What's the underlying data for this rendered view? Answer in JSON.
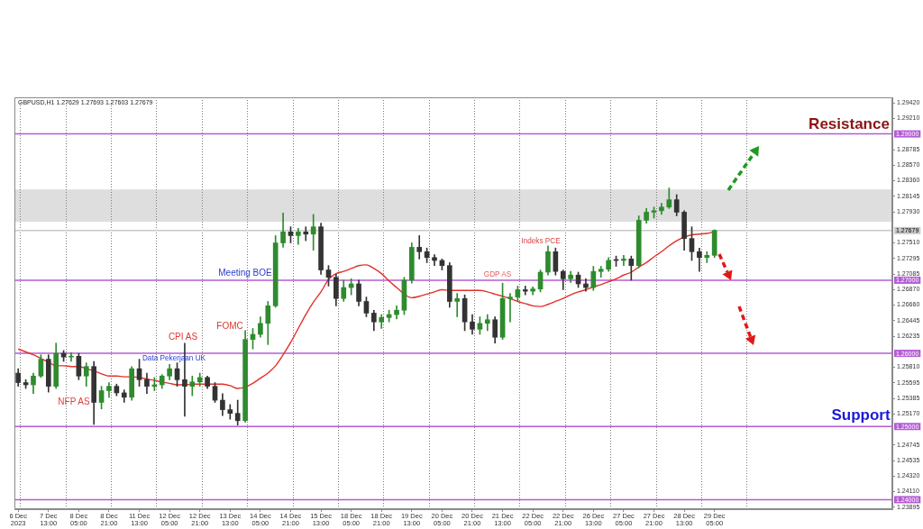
{
  "chart_data": {
    "type": "candlestick",
    "title": "GBPUSD,H1 1.27629 1.27693 1.27603 1.27679",
    "categories": [
      "6 Dec 2023",
      null,
      null,
      null,
      "7 Dec 13:00",
      null,
      null,
      null,
      "8 Dec 05:00",
      null,
      null,
      null,
      "8 Dec 21:00",
      null,
      null,
      null,
      "11 Dec 13:00",
      null,
      null,
      null,
      "12 Dec 05:00",
      null,
      null,
      null,
      "12 Dec 21:00",
      null,
      null,
      null,
      "13 Dec 13:00",
      null,
      null,
      null,
      "14 Dec 05:00",
      null,
      null,
      null,
      "14 Dec 21:00",
      null,
      null,
      null,
      "15 Dec 13:00",
      null,
      null,
      null,
      "18 Dec 05:00",
      null,
      null,
      null,
      "18 Dec 21:00",
      null,
      null,
      null,
      "19 Dec 13:00",
      null,
      null,
      null,
      "20 Dec 05:00",
      null,
      null,
      null,
      "20 Dec 21:00",
      null,
      null,
      null,
      "21 Dec 13:00",
      null,
      null,
      null,
      "22 Dec 05:00",
      null,
      null,
      null,
      "22 Dec 21:00",
      null,
      null,
      null,
      "26 Dec 13:00",
      null,
      null,
      null,
      "27 Dec 05:00",
      null,
      null,
      null,
      "27 Dec 21:00",
      null,
      null,
      null,
      "28 Dec 13:00",
      null,
      null,
      null,
      "29 Dec 05:00",
      null,
      null,
      null,
      null,
      null,
      null,
      null,
      null,
      null,
      null,
      null,
      null,
      null,
      null,
      null,
      null,
      null,
      null,
      null,
      null,
      null,
      null,
      null
    ],
    "ohlc": [
      [
        1.2573,
        1.2579,
        1.2555,
        1.256
      ],
      [
        1.256,
        1.2564,
        1.2552,
        1.2557
      ],
      [
        1.2557,
        1.2573,
        1.2545,
        1.2569
      ],
      [
        1.2569,
        1.2598,
        1.2567,
        1.2592
      ],
      [
        1.2592,
        1.2598,
        1.2547,
        1.2555
      ],
      [
        1.2555,
        1.2614,
        1.2552,
        1.26
      ],
      [
        1.26,
        1.2604,
        1.2589,
        1.2595
      ],
      [
        1.2595,
        1.2601,
        1.2589,
        1.2596
      ],
      [
        1.2596,
        1.26,
        1.2564,
        1.2569
      ],
      [
        1.2569,
        1.2587,
        1.2555,
        1.2582
      ],
      [
        1.2582,
        1.2589,
        1.2503,
        1.2533
      ],
      [
        1.2533,
        1.2555,
        1.2524,
        1.2549
      ],
      [
        1.2549,
        1.256,
        1.254,
        1.2555
      ],
      [
        1.2555,
        1.2558,
        1.2542,
        1.2546
      ],
      [
        1.2546,
        1.255,
        1.2533,
        1.254
      ],
      [
        1.254,
        1.2582,
        1.2536,
        1.2579
      ],
      [
        1.2579,
        1.2592,
        1.2555,
        1.2564
      ],
      [
        1.2564,
        1.2573,
        1.2545,
        1.2555
      ],
      [
        1.2555,
        1.2567,
        1.2549,
        1.2557
      ],
      [
        1.2557,
        1.2571,
        1.2552,
        1.2569
      ],
      [
        1.2569,
        1.2585,
        1.2564,
        1.2579
      ],
      [
        1.2579,
        1.2587,
        1.2555,
        1.2564
      ],
      [
        1.2564,
        1.2614,
        1.2514,
        1.2555
      ],
      [
        1.2555,
        1.2569,
        1.2542,
        1.2561
      ],
      [
        1.2561,
        1.2573,
        1.2555,
        1.2567
      ],
      [
        1.2567,
        1.2569,
        1.2552,
        1.2555
      ],
      [
        1.2555,
        1.256,
        1.2533,
        1.2536
      ],
      [
        1.2536,
        1.2545,
        1.2515,
        1.2523
      ],
      [
        1.2523,
        1.253,
        1.251,
        1.2518
      ],
      [
        1.2518,
        1.2536,
        1.2502,
        1.2508
      ],
      [
        1.2508,
        1.2631,
        1.2506,
        1.2619
      ],
      [
        1.2619,
        1.2634,
        1.2606,
        1.2626
      ],
      [
        1.2626,
        1.265,
        1.2622,
        1.2641
      ],
      [
        1.2641,
        1.2671,
        1.2612,
        1.2665
      ],
      [
        1.2665,
        1.2761,
        1.2663,
        1.2751
      ],
      [
        1.2751,
        1.2792,
        1.2745,
        1.2766
      ],
      [
        1.2766,
        1.2773,
        1.2751,
        1.2761
      ],
      [
        1.2761,
        1.2771,
        1.2749,
        1.2766
      ],
      [
        1.2766,
        1.2773,
        1.2754,
        1.2763
      ],
      [
        1.2763,
        1.279,
        1.2741,
        1.2773
      ],
      [
        1.2773,
        1.2778,
        1.2708,
        1.2714
      ],
      [
        1.2714,
        1.272,
        1.2692,
        1.2704
      ],
      [
        1.2704,
        1.2708,
        1.2665,
        1.2675
      ],
      [
        1.2675,
        1.27,
        1.2671,
        1.269
      ],
      [
        1.269,
        1.2702,
        1.268,
        1.2695
      ],
      [
        1.2695,
        1.27,
        1.2665,
        1.2671
      ],
      [
        1.2671,
        1.2677,
        1.265,
        1.2655
      ],
      [
        1.2655,
        1.2659,
        1.2631,
        1.2643
      ],
      [
        1.2643,
        1.2653,
        1.2634,
        1.2649
      ],
      [
        1.2649,
        1.2659,
        1.2643,
        1.2653
      ],
      [
        1.2653,
        1.2665,
        1.2647,
        1.2659
      ],
      [
        1.2659,
        1.2704,
        1.2653,
        1.27
      ],
      [
        1.27,
        1.2751,
        1.2696,
        1.2745
      ],
      [
        1.2745,
        1.2761,
        1.2729,
        1.2739
      ],
      [
        1.2739,
        1.2744,
        1.2724,
        1.2731
      ],
      [
        1.2731,
        1.2735,
        1.272,
        1.2727
      ],
      [
        1.2727,
        1.2729,
        1.2714,
        1.272
      ],
      [
        1.272,
        1.2724,
        1.2663,
        1.2671
      ],
      [
        1.2671,
        1.2682,
        1.265,
        1.2675
      ],
      [
        1.2675,
        1.268,
        1.2631,
        1.2643
      ],
      [
        1.2643,
        1.2653,
        1.2626,
        1.2633
      ],
      [
        1.2633,
        1.265,
        1.2626,
        1.2641
      ],
      [
        1.2641,
        1.2653,
        1.2631,
        1.2646
      ],
      [
        1.2646,
        1.265,
        1.2614,
        1.2622
      ],
      [
        1.2622,
        1.2696,
        1.2619,
        1.2675
      ],
      [
        1.2675,
        1.2682,
        1.2643,
        1.2677
      ],
      [
        1.2677,
        1.2692,
        1.2671,
        1.2687
      ],
      [
        1.2687,
        1.2692,
        1.268,
        1.2685
      ],
      [
        1.2685,
        1.2691,
        1.268,
        1.2688
      ],
      [
        1.2688,
        1.2714,
        1.2684,
        1.2711
      ],
      [
        1.2711,
        1.2747,
        1.2707,
        1.2739
      ],
      [
        1.2739,
        1.2744,
        1.2707,
        1.2712
      ],
      [
        1.2712,
        1.2714,
        1.2687,
        1.2702
      ],
      [
        1.2702,
        1.2712,
        1.2697,
        1.2707
      ],
      [
        1.2707,
        1.2711,
        1.269,
        1.2695
      ],
      [
        1.2695,
        1.2702,
        1.2685,
        1.269
      ],
      [
        1.269,
        1.2719,
        1.2686,
        1.2712
      ],
      [
        1.2712,
        1.2719,
        1.2704,
        1.2715
      ],
      [
        1.2715,
        1.2731,
        1.2712,
        1.2727
      ],
      [
        1.2727,
        1.2733,
        1.2719,
        1.2727
      ],
      [
        1.2727,
        1.2734,
        1.272,
        1.2729
      ],
      [
        1.2729,
        1.2733,
        1.27,
        1.272
      ],
      [
        1.272,
        1.2788,
        1.2717,
        1.2782
      ],
      [
        1.2782,
        1.2798,
        1.2778,
        1.2793
      ],
      [
        1.2793,
        1.28,
        1.2785,
        1.2795
      ],
      [
        1.2795,
        1.2805,
        1.279,
        1.28
      ],
      [
        1.28,
        1.2826,
        1.2798,
        1.281
      ],
      [
        1.281,
        1.2817,
        1.2788,
        1.2793
      ],
      [
        1.2793,
        1.2795,
        1.2741,
        1.2757
      ],
      [
        1.2757,
        1.2773,
        1.2727,
        1.2739
      ],
      [
        1.2739,
        1.2744,
        1.2712,
        1.2731
      ],
      [
        1.2731,
        1.2739,
        1.2724,
        1.2734
      ],
      [
        1.2734,
        1.2769,
        1.2731,
        1.2768
      ],
      null,
      null,
      null,
      null,
      null,
      null,
      null,
      null,
      null,
      null,
      null,
      null,
      null,
      null,
      null,
      null,
      null,
      null,
      null,
      null,
      null,
      null,
      null
    ],
    "colors": [
      "#333333",
      "#333333",
      "#2e8b2e",
      "#2e8b2e",
      "#333333",
      "#2e8b2e",
      "#333333",
      "#2e8b2e",
      "#333333",
      "#2e8b2e",
      "#333333",
      "#2e8b2e",
      "#2e8b2e",
      "#333333",
      "#333333",
      "#2e8b2e",
      "#333333",
      "#333333",
      "#2e8b2e",
      "#2e8b2e",
      "#2e8b2e",
      "#333333",
      "#333333",
      "#2e8b2e",
      "#2e8b2e",
      "#333333",
      "#333333",
      "#333333",
      "#333333",
      "#333333",
      "#2e8b2e",
      "#2e8b2e",
      "#2e8b2e",
      "#2e8b2e",
      "#2e8b2e",
      "#2e8b2e",
      "#333333",
      "#2e8b2e",
      "#333333",
      "#2e8b2e",
      "#333333",
      "#333333",
      "#333333",
      "#2e8b2e",
      "#2e8b2e",
      "#333333",
      "#333333",
      "#333333",
      "#2e8b2e",
      "#2e8b2e",
      "#2e8b2e",
      "#2e8b2e",
      "#2e8b2e",
      "#333333",
      "#333333",
      "#333333",
      "#333333",
      "#333333",
      "#2e8b2e",
      "#333333",
      "#333333",
      "#2e8b2e",
      "#2e8b2e",
      "#333333",
      "#2e8b2e",
      "#2e8b2e",
      "#2e8b2e",
      "#333333",
      "#2e8b2e",
      "#2e8b2e",
      "#2e8b2e",
      "#333333",
      "#333333",
      "#2e8b2e",
      "#333333",
      "#333333",
      "#2e8b2e",
      "#2e8b2e",
      "#2e8b2e",
      "#333333",
      "#2e8b2e",
      "#333333",
      "#2e8b2e",
      "#2e8b2e",
      "#2e8b2e",
      "#2e8b2e",
      "#2e8b2e",
      "#333333",
      "#333333",
      "#333333",
      "#333333",
      "#2e8b2e",
      "#2e8b2e",
      null,
      null,
      null,
      null,
      null,
      null,
      null,
      null,
      null,
      null,
      null,
      null,
      null,
      null,
      null,
      null,
      null,
      null,
      null,
      null,
      null,
      null,
      null
    ],
    "series": [
      {
        "type": "line",
        "color": "#e3302a",
        "values": [
          1.2606,
          1.2602,
          1.2598,
          1.2593,
          1.2588,
          1.2583,
          1.2583,
          1.2582,
          1.2582,
          1.2579,
          1.2576,
          1.2572,
          1.2569,
          1.2569,
          1.2568,
          1.2568,
          1.2567,
          1.2565,
          1.2563,
          1.2561,
          1.2559,
          1.2557,
          1.2557,
          1.2558,
          1.2558,
          1.2558,
          1.2558,
          1.2558,
          1.2556,
          1.2552,
          1.2554,
          1.2559,
          1.2566,
          1.2573,
          1.2583,
          1.2598,
          1.2615,
          1.2634,
          1.2653,
          1.267,
          1.2684,
          1.2701,
          1.2709,
          1.2712,
          1.2716,
          1.272,
          1.2721,
          1.2716,
          1.2709,
          1.2699,
          1.269,
          1.2681,
          1.2676,
          1.2678,
          1.2681,
          1.2684,
          1.2687,
          1.2686,
          1.2686,
          1.2686,
          1.2686,
          1.2686,
          1.2684,
          1.2681,
          1.2678,
          1.2675,
          1.2671,
          1.2668,
          1.2665,
          1.2664,
          1.2667,
          1.2671,
          1.2675,
          1.268,
          1.2684,
          1.2687,
          1.2691,
          1.2694,
          1.2698,
          1.2702,
          1.2707,
          1.2711,
          1.2718,
          1.2724,
          1.2732,
          1.2739,
          1.2747,
          1.2754,
          1.2759,
          1.2762,
          1.2763,
          1.2764,
          1.2766,
          null,
          null,
          null,
          null,
          null,
          null,
          null,
          null,
          null,
          null,
          null,
          null,
          null,
          null,
          null,
          null,
          null,
          null,
          null,
          null,
          null,
          null,
          null
        ]
      }
    ],
    "ylim": [
      1.2387,
      1.295
    ],
    "yticks": [
      {
        "value": 1.2942,
        "label": "1.29420"
      },
      {
        "value": 1.2921,
        "label": "1.29210"
      },
      1.28785,
      {
        "value": 1.2857,
        "label": "1.28570"
      },
      {
        "value": 1.2836,
        "label": "1.28360"
      },
      1.28145,
      {
        "value": 1.2793,
        "label": "1.27930"
      },
      {
        "value": 1.2751,
        "label": "1.27510"
      },
      1.27295,
      1.27085,
      {
        "value": 1.2687,
        "label": "1.26870"
      },
      {
        "value": 1.2666,
        "label": "1.26660"
      },
      1.26445,
      1.26235,
      {
        "value": 1.2581,
        "label": "1.25810"
      },
      1.25595,
      1.25385,
      {
        "value": 1.2517,
        "label": "1.25170"
      },
      1.24745,
      1.24535,
      {
        "value": 1.2432,
        "label": "1.24320"
      },
      {
        "value": 1.2411,
        "label": "1.24110"
      },
      1.23895
    ],
    "bands": [
      {
        "axis": "y",
        "from": 1.278,
        "to": 1.2824,
        "color": "#dedede"
      }
    ],
    "ref_lines": [
      {
        "axis": "y",
        "value": 1.29,
        "label": "1.29000",
        "color": "#b45cd6"
      },
      {
        "axis": "y",
        "value": 1.27,
        "label": "1.27000",
        "color": "#b45cd6"
      },
      {
        "axis": "y",
        "value": 1.26,
        "label": "1.26000",
        "color": "#b45cd6"
      },
      {
        "axis": "y",
        "value": 1.25,
        "label": "1.25000",
        "color": "#b45cd6"
      },
      {
        "axis": "y",
        "value": 1.24,
        "label": "1.24000",
        "color": "#b45cd6"
      },
      {
        "axis": "y",
        "value": 1.27679,
        "label": "1.27679",
        "color": "#c8c8c8"
      }
    ],
    "annotations": [
      "NFP AS",
      "Data Pekerjaan UK",
      "CPI AS",
      "FOMC",
      "Meeting BOE",
      "GDP AS",
      "Indeks PCE",
      "Resistance",
      "Support"
    ]
  }
}
